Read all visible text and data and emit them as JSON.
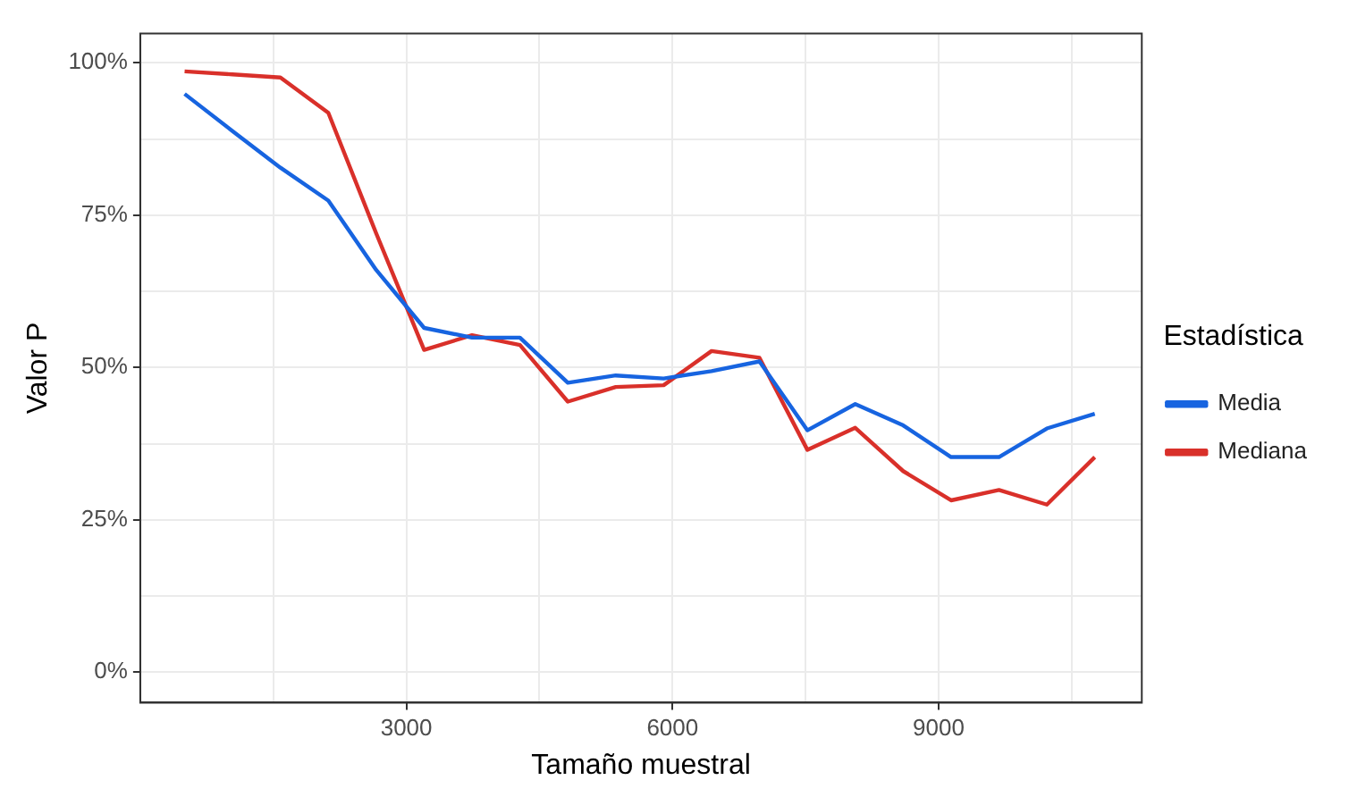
{
  "chart_data": {
    "type": "line",
    "xlabel": "Tamaño muestral",
    "ylabel": "Valor P",
    "legend_title": "Estadística",
    "x": [
      500,
      1040,
      1580,
      2120,
      2660,
      3200,
      3740,
      4280,
      4820,
      5360,
      5900,
      6440,
      6980,
      7520,
      8060,
      8600,
      9140,
      9680,
      10220,
      10760
    ],
    "series": [
      {
        "name": "Media",
        "color": "#1764e0",
        "values": [
          94.9,
          88.8,
          82.8,
          77.4,
          66,
          56.5,
          54.9,
          54.9,
          47.5,
          48.7,
          48.2,
          49.4,
          51,
          39.7,
          44,
          40.5,
          35.3,
          35.3,
          40,
          42.4
        ]
      },
      {
        "name": "Mediana",
        "color": "#d9302a",
        "values": [
          98.6,
          98.1,
          97.6,
          91.8,
          72,
          52.9,
          55.3,
          53.7,
          44.4,
          46.8,
          47.1,
          52.7,
          51.6,
          36.5,
          40.1,
          33,
          28.2,
          29.9,
          27.5,
          35.3
        ]
      }
    ],
    "xlim": [
      0,
      11290
    ],
    "xticks": [
      3000,
      6000,
      9000
    ],
    "ylim": [
      -5,
      104.8
    ],
    "yticks": [
      {
        "value": 0,
        "label": "0%"
      },
      {
        "value": 25,
        "label": "25%"
      },
      {
        "value": 50,
        "label": "50%"
      },
      {
        "value": 75,
        "label": "75%"
      },
      {
        "value": 100,
        "label": "100%"
      }
    ],
    "grid": true,
    "legend": "right",
    "marker": "none",
    "line_style": "solid"
  }
}
